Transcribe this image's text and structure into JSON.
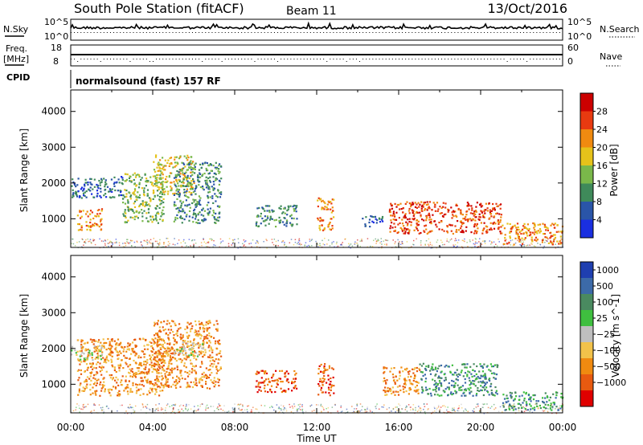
{
  "header": {
    "station": "South Pole Station (fitACF)",
    "beam": "Beam 11",
    "date": "13/Oct/2016"
  },
  "left_labels": {
    "nsky": "N.Sky",
    "nsky_top": "10^5",
    "nsky_bottom": "10^0",
    "freq": "Freq.",
    "freq_unit": "[MHz]",
    "freq_top": "18",
    "freq_bottom": "8",
    "cpid": "CPID"
  },
  "right_labels": {
    "nsearch": "N.Search",
    "nsearch_top": "10^5",
    "nsearch_bottom": "10^0",
    "nave": "Nave",
    "nave_top": "60",
    "nave_bottom": "0"
  },
  "cpid_text": "normalsound (fast) 157 RF",
  "chart_data": [
    {
      "type": "heatmap",
      "panel": "power",
      "ylabel": "Slant Range [km]",
      "y_ticks": [
        "1000",
        "2000",
        "3000",
        "4000"
      ],
      "ylim": [
        200,
        4600
      ],
      "colorbar_label": "Power [dB]",
      "colorbar_ticks": [
        "4",
        "8",
        "12",
        "16",
        "20",
        "24",
        "28"
      ],
      "colors": [
        "#1a2fe0",
        "#2a55a8",
        "#3f8a5a",
        "#7ab84a",
        "#e6c21a",
        "#f08a10",
        "#e83a10",
        "#cc0000"
      ],
      "echo_regions": [
        {
          "t": [
            0.3,
            1.5
          ],
          "range": [
            700,
            1300
          ],
          "level": 5
        },
        {
          "t": [
            0.0,
            2.5
          ],
          "range": [
            1600,
            2200
          ],
          "level": 1
        },
        {
          "t": [
            2.5,
            4.5
          ],
          "range": [
            900,
            2300
          ],
          "level": 3
        },
        {
          "t": [
            4.0,
            6.0
          ],
          "range": [
            1700,
            2800
          ],
          "level": 4
        },
        {
          "t": [
            5.0,
            7.3
          ],
          "range": [
            900,
            2600
          ],
          "level": 2
        },
        {
          "t": [
            9.0,
            11.0
          ],
          "range": [
            800,
            1400
          ],
          "level": 2
        },
        {
          "t": [
            12.0,
            12.8
          ],
          "range": [
            700,
            1600
          ],
          "level": 5
        },
        {
          "t": [
            14.2,
            15.2
          ],
          "range": [
            800,
            1100
          ],
          "level": 1
        },
        {
          "t": [
            15.5,
            21.0
          ],
          "range": [
            600,
            1500
          ],
          "level": 6
        },
        {
          "t": [
            21.0,
            24.0
          ],
          "range": [
            300,
            900
          ],
          "level": 5
        }
      ]
    },
    {
      "type": "heatmap",
      "panel": "velocity",
      "ylabel": "Slant Range [km]",
      "y_ticks": [
        "1000",
        "2000",
        "3000",
        "4000"
      ],
      "ylim": [
        200,
        4600
      ],
      "colorbar_label": "Velocity [m s^-1]",
      "colorbar_ticks": [
        "1000",
        "500",
        "100",
        "25",
        "−25",
        "−100",
        "−500",
        "−1000"
      ],
      "colors": [
        "#1f3fb0",
        "#3c6aa8",
        "#4a8a60",
        "#3fbf3f",
        "#bfbfbf",
        "#f2c24a",
        "#f08a10",
        "#e85a10",
        "#e00000"
      ],
      "echo_regions": [
        {
          "t": [
            0.3,
            4.5
          ],
          "range": [
            700,
            2300
          ],
          "level": 6
        },
        {
          "t": [
            0.0,
            1.5
          ],
          "range": [
            1700,
            2100
          ],
          "level": 4
        },
        {
          "t": [
            4.0,
            7.3
          ],
          "range": [
            900,
            2800
          ],
          "level": 6
        },
        {
          "t": [
            5.0,
            6.5
          ],
          "range": [
            1800,
            2200
          ],
          "level": 4
        },
        {
          "t": [
            9.0,
            11.0
          ],
          "range": [
            800,
            1400
          ],
          "level": 7
        },
        {
          "t": [
            12.0,
            12.8
          ],
          "range": [
            700,
            1600
          ],
          "level": 7
        },
        {
          "t": [
            15.2,
            17.0
          ],
          "range": [
            700,
            1500
          ],
          "level": 6
        },
        {
          "t": [
            17.0,
            20.8
          ],
          "range": [
            700,
            1600
          ],
          "level": 2
        },
        {
          "t": [
            21.0,
            24.0
          ],
          "range": [
            300,
            800
          ],
          "level": 2
        }
      ]
    }
  ],
  "x_axis": {
    "ticks": [
      "00:00",
      "04:00",
      "08:00",
      "12:00",
      "16:00",
      "20:00",
      "00:00"
    ],
    "label": "Time UT"
  }
}
